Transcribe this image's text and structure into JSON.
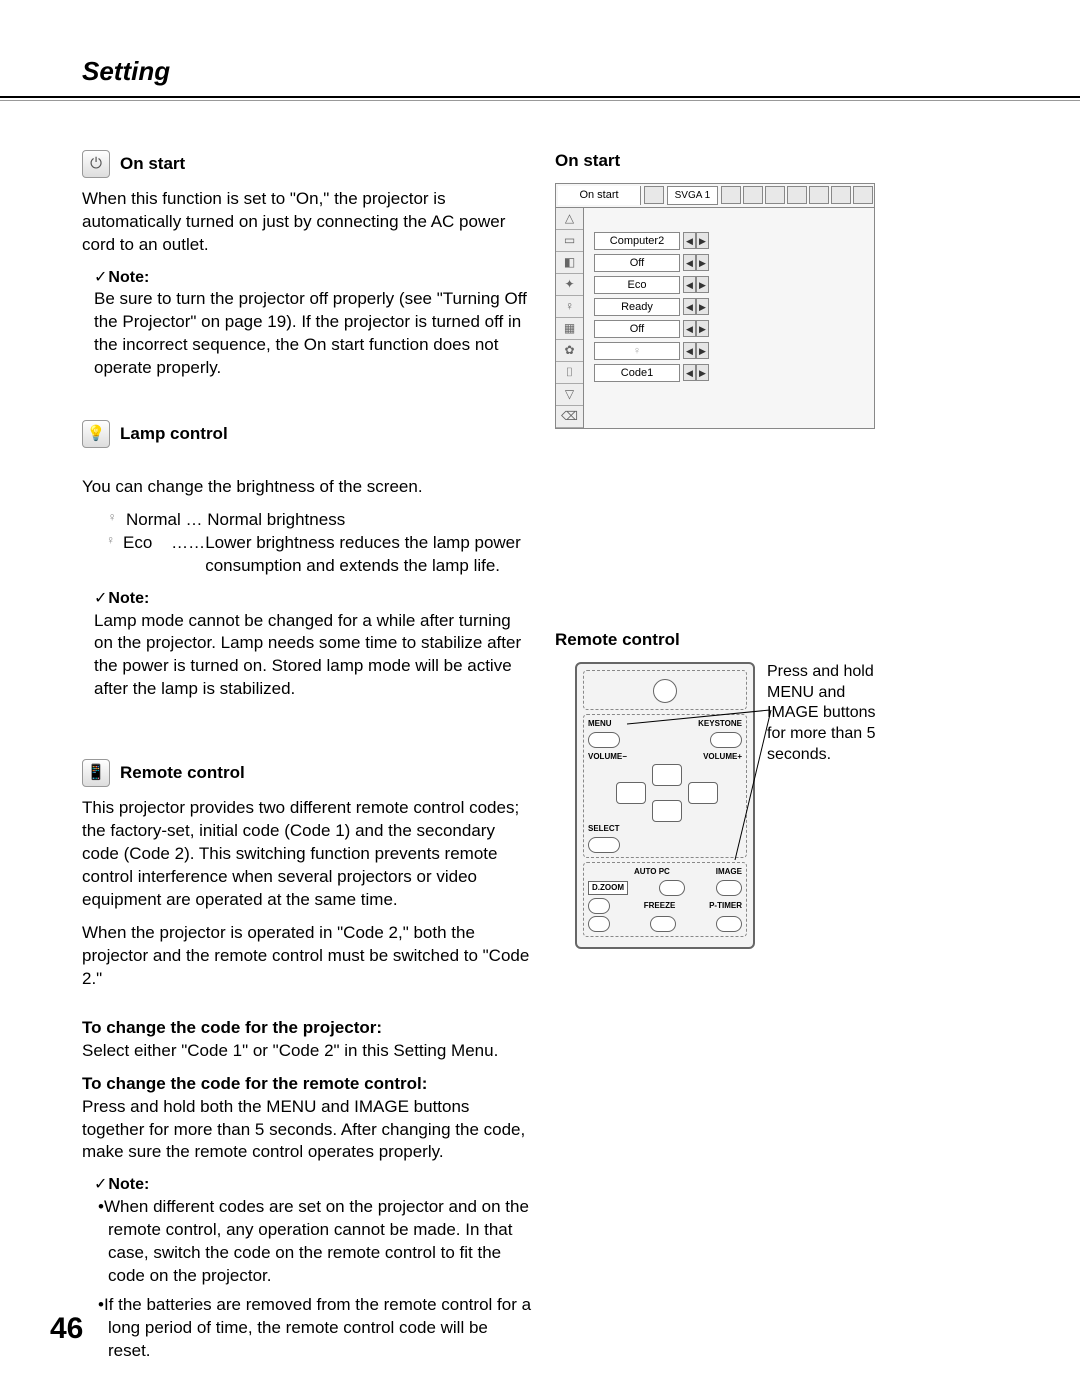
{
  "page": {
    "title": "Setting",
    "number": "46"
  },
  "left": {
    "on_start": {
      "heading": "On start",
      "body": "When this function is set to \"On,\" the projector is automatically turned on just by connecting the AC power cord to an outlet.",
      "note_label": "Note:",
      "note_body": "Be sure to turn the projector off properly (see \"Turning Off the Projector\" on page 19). If the projector is turned off in the incorrect sequence, the On start function does not operate properly."
    },
    "lamp": {
      "heading": "Lamp control",
      "body": "You can change the brightness of the screen.",
      "items": {
        "normal_label": "Normal …",
        "normal_desc": "Normal brightness",
        "eco_label": "Eco    ……",
        "eco_desc": "Lower brightness reduces the lamp power consumption and extends the lamp life."
      },
      "note_label": "Note:",
      "note_body": "Lamp mode cannot be changed for a while after turning on the projector. Lamp needs some time to stabilize after the power is turned on. Stored lamp mode will be active after the lamp is stabilized."
    },
    "remote": {
      "heading": "Remote control",
      "body1": "This projector provides two different remote control codes; the factory-set, initial code (Code 1) and the secondary code (Code 2). This switching function prevents remote control interference when several projectors or video equipment are operated at the same time.",
      "body2": "When the projector is operated in \"Code 2,\" both the projector and the remote control must be switched to \"Code 2.\"",
      "proj_head": "To change the code for the projector:",
      "proj_body": "Select either \"Code 1\" or \"Code 2\" in this Setting Menu.",
      "rc_head": "To change the code for the remote control:",
      "rc_body": "Press and hold both the MENU and IMAGE buttons together for more than 5 seconds. After changing the code, make sure the remote control operates properly.",
      "note_label": "Note:",
      "note_b1": "•When different codes are set on the projector and on the remote control, any operation cannot be made. In that case, switch the code on the remote control to fit the code on the projector.",
      "note_b2": "•If the batteries are removed from the remote control for a long period of time, the remote control code will be reset."
    }
  },
  "right": {
    "osd": {
      "title": "On start",
      "top_label": "On start",
      "signal": "SVGA 1",
      "rows": [
        "Computer2",
        "Off",
        "Eco",
        "Ready",
        "Off",
        "",
        "Code1"
      ]
    },
    "remote": {
      "title": "Remote control",
      "labels": {
        "menu": "MENU",
        "keystone": "KEYSTONE",
        "vol_minus": "VOLUME−",
        "vol_plus": "VOLUME+",
        "select": "SELECT",
        "autopc": "AUTO PC",
        "image": "IMAGE",
        "dzoom": "D.ZOOM",
        "freeze": "FREEZE",
        "ptimer": "P-TIMER"
      },
      "note": "Press and hold MENU and IMAGE buttons for more than 5 seconds."
    }
  },
  "colors": {
    "text": "#000000",
    "border": "#888888",
    "bg": "#ffffff",
    "panel": "#f3f3f3"
  }
}
